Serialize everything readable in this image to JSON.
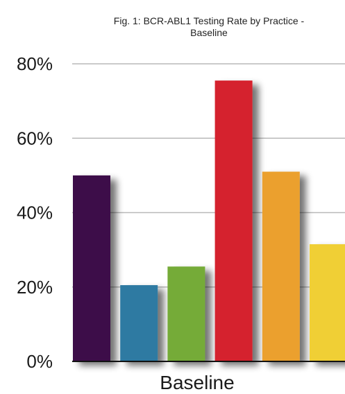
{
  "chart_data": {
    "type": "bar",
    "title_lines": [
      "Fig. 1: BCR-ABL1 Testing Rate by Practice -",
      "Baseline"
    ],
    "categories": [
      "Baseline"
    ],
    "series": [
      {
        "values": [
          50
        ],
        "color": "#3e0c4a"
      },
      {
        "values": [
          20.5
        ],
        "color": "#2e7aa2"
      },
      {
        "values": [
          25.5
        ],
        "color": "#74ab39"
      },
      {
        "values": [
          75.5
        ],
        "color": "#d5232d"
      },
      {
        "values": [
          51
        ],
        "color": "#eba02e"
      },
      {
        "values": [
          31.5
        ],
        "color": "#f0cf34"
      }
    ],
    "y_ticks": [
      "0%",
      "20%",
      "40%",
      "60%",
      "80%"
    ],
    "ylim": [
      0,
      80
    ],
    "grid": true,
    "legend": "none"
  }
}
